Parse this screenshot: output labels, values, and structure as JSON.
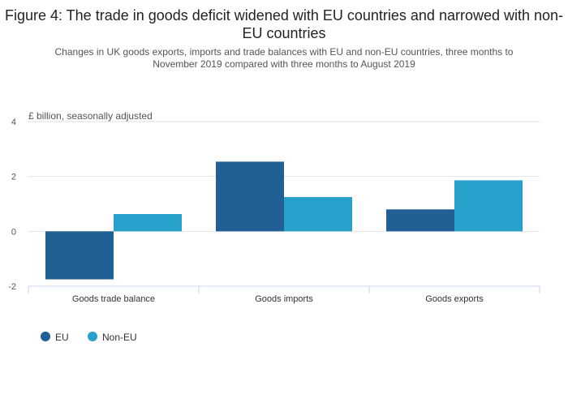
{
  "chart_data": {
    "type": "bar",
    "title": "Figure 4: The trade in goods deficit widened with EU countries and narrowed with non-EU countries",
    "subtitle": "Changes in UK goods exports, imports and trade balances with EU and non-EU countries, three months to November 2019 compared with three months to August 2019",
    "ylabel": "£ billion, seasonally adjusted",
    "xlabel": "",
    "ylim": [
      -2,
      4
    ],
    "yticks": [
      4,
      2,
      0,
      -2
    ],
    "grid": true,
    "legend_position": "bottom-left",
    "categories": [
      "Goods trade balance",
      "Goods imports",
      "Goods exports"
    ],
    "series": [
      {
        "name": "EU",
        "color": "#206095",
        "values": [
          -1.75,
          2.54,
          0.8
        ]
      },
      {
        "name": "Non-EU",
        "color": "#27a0cc",
        "values": [
          0.63,
          1.25,
          1.86
        ]
      }
    ]
  }
}
